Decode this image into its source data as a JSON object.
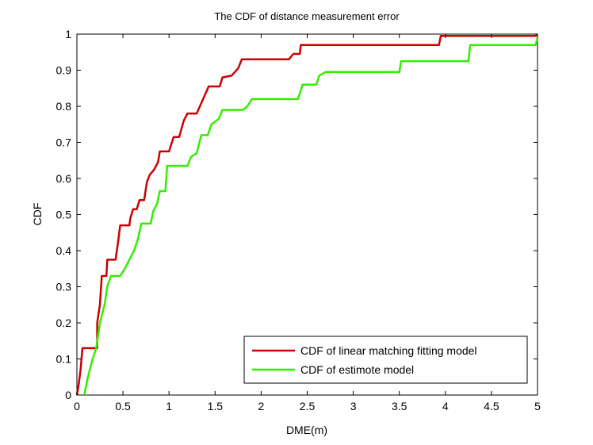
{
  "chart_data": {
    "type": "line",
    "title": "The CDF of distance measurement error",
    "xlabel": "DME(m)",
    "ylabel": "CDF",
    "xlim": [
      0,
      5
    ],
    "ylim": [
      0,
      1
    ],
    "xticks": [
      0,
      0.5,
      1,
      1.5,
      2,
      2.5,
      3,
      3.5,
      4,
      4.5,
      5
    ],
    "xtick_labels": [
      "0",
      "0.5",
      "1",
      "1.5",
      "2",
      "2.5",
      "3",
      "3.5",
      "4",
      "4.5",
      "5"
    ],
    "yticks": [
      0,
      0.1,
      0.2,
      0.3,
      0.4,
      0.5,
      0.6,
      0.7,
      0.8,
      0.9,
      1
    ],
    "ytick_labels": [
      "0",
      "0.1",
      "0.2",
      "0.3",
      "0.4",
      "0.5",
      "0.6",
      "0.7",
      "0.8",
      "0.9",
      "1"
    ],
    "grid": false,
    "legend": "bottom-right",
    "series": [
      {
        "name": "CDF of linear matching fitting model",
        "color": "#cc0000",
        "points": [
          [
            0.0,
            0.0
          ],
          [
            0.02,
            0.03
          ],
          [
            0.04,
            0.07
          ],
          [
            0.06,
            0.13
          ],
          [
            0.22,
            0.13
          ],
          [
            0.22,
            0.2
          ],
          [
            0.25,
            0.25
          ],
          [
            0.27,
            0.33
          ],
          [
            0.32,
            0.33
          ],
          [
            0.33,
            0.375
          ],
          [
            0.42,
            0.375
          ],
          [
            0.45,
            0.43
          ],
          [
            0.47,
            0.47
          ],
          [
            0.57,
            0.47
          ],
          [
            0.58,
            0.49
          ],
          [
            0.61,
            0.515
          ],
          [
            0.65,
            0.515
          ],
          [
            0.68,
            0.54
          ],
          [
            0.73,
            0.54
          ],
          [
            0.76,
            0.59
          ],
          [
            0.79,
            0.61
          ],
          [
            0.84,
            0.625
          ],
          [
            0.88,
            0.645
          ],
          [
            0.9,
            0.675
          ],
          [
            1.0,
            0.675
          ],
          [
            1.05,
            0.715
          ],
          [
            1.11,
            0.715
          ],
          [
            1.16,
            0.76
          ],
          [
            1.2,
            0.78
          ],
          [
            1.3,
            0.78
          ],
          [
            1.37,
            0.82
          ],
          [
            1.43,
            0.855
          ],
          [
            1.55,
            0.855
          ],
          [
            1.58,
            0.88
          ],
          [
            1.68,
            0.885
          ],
          [
            1.75,
            0.905
          ],
          [
            1.79,
            0.93
          ],
          [
            2.3,
            0.93
          ],
          [
            2.35,
            0.945
          ],
          [
            2.42,
            0.945
          ],
          [
            2.43,
            0.97
          ],
          [
            3.93,
            0.97
          ],
          [
            3.95,
            0.995
          ],
          [
            4.98,
            0.995
          ],
          [
            5.0,
            1.0
          ]
        ]
      },
      {
        "name": "CDF of estimote model",
        "color": "#33ee00",
        "points": [
          [
            0.08,
            0.0
          ],
          [
            0.12,
            0.05
          ],
          [
            0.17,
            0.1
          ],
          [
            0.21,
            0.13
          ],
          [
            0.25,
            0.2
          ],
          [
            0.3,
            0.25
          ],
          [
            0.33,
            0.3
          ],
          [
            0.37,
            0.33
          ],
          [
            0.47,
            0.33
          ],
          [
            0.52,
            0.35
          ],
          [
            0.58,
            0.38
          ],
          [
            0.62,
            0.4
          ],
          [
            0.66,
            0.43
          ],
          [
            0.7,
            0.475
          ],
          [
            0.8,
            0.475
          ],
          [
            0.83,
            0.51
          ],
          [
            0.87,
            0.53
          ],
          [
            0.9,
            0.565
          ],
          [
            0.96,
            0.565
          ],
          [
            0.98,
            0.635
          ],
          [
            1.2,
            0.635
          ],
          [
            1.24,
            0.66
          ],
          [
            1.3,
            0.67
          ],
          [
            1.35,
            0.72
          ],
          [
            1.42,
            0.72
          ],
          [
            1.46,
            0.75
          ],
          [
            1.54,
            0.765
          ],
          [
            1.58,
            0.79
          ],
          [
            1.8,
            0.79
          ],
          [
            1.85,
            0.8
          ],
          [
            1.9,
            0.82
          ],
          [
            2.4,
            0.82
          ],
          [
            2.45,
            0.86
          ],
          [
            2.6,
            0.86
          ],
          [
            2.63,
            0.885
          ],
          [
            2.7,
            0.895
          ],
          [
            3.5,
            0.895
          ],
          [
            3.52,
            0.925
          ],
          [
            4.25,
            0.925
          ],
          [
            4.27,
            0.97
          ],
          [
            4.98,
            0.97
          ],
          [
            5.0,
            0.99
          ]
        ]
      }
    ]
  }
}
